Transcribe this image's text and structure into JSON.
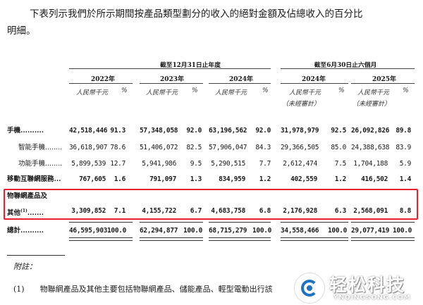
{
  "intro": {
    "line1": "下表列示我們於所示期間按產品類型劃分的收入的絕對金額及佔總收入的百分比",
    "line2": "明細。"
  },
  "table": {
    "group_fy": "截至12月31日止年度",
    "group_hy": "截至6月30日止六個月",
    "years": [
      "2022年",
      "2023年",
      "2024年",
      "2024年",
      "2025年"
    ],
    "unit": "人民幣千元",
    "pct": "%",
    "unaudited": "（未經審計）",
    "rows": [
      {
        "label": "手機",
        "leader": "..........",
        "vals": [
          "42,518,446",
          "91.3",
          "57,348,058",
          "92.0",
          "63,196,562",
          "92.0",
          "31,978,979",
          "92.5",
          "26,092,826",
          "89.8"
        ]
      },
      {
        "label": "智能手機",
        "leader": "........",
        "sub": true,
        "vals": [
          "36,618,907",
          "78.6",
          "51,406,072",
          "82.5",
          "57,906,047",
          "84.3",
          "29,366,505",
          "85.0",
          "24,388,638",
          "83.9"
        ]
      },
      {
        "label": "功能手機",
        "leader": "........",
        "sub": true,
        "vals": [
          "5,899,539",
          "12.7",
          "5,941,986",
          "9.5",
          "5,290,515",
          "7.7",
          "2,612,474",
          "7.5",
          "1,704,188",
          "5.9"
        ]
      },
      {
        "label": "移動互聯網服務",
        "leader": "...",
        "vals": [
          "767,605",
          "1.6",
          "791,097",
          "1.3",
          "834,959",
          "1.2",
          "402,559",
          "1.2",
          "416,502",
          "1.4"
        ]
      },
      {
        "label": "其他",
        "leader": ".......",
        "label_prefix": "物聯網產品及",
        "sup": "(1)",
        "vals": [
          "3,309,852",
          "7.1",
          "4,155,722",
          "6.7",
          "4,683,758",
          "6.8",
          "2,176,928",
          "6.3",
          "2,568,091",
          "8.8"
        ]
      },
      {
        "label": "總計",
        "leader": "..........",
        "vals": [
          "46,595,903",
          "100.0",
          "62,294,877",
          "100.0",
          "68,715,279",
          "100.0",
          "34,558,466",
          "100.0",
          "29,077,419",
          "100.0"
        ]
      }
    ]
  },
  "notes": {
    "heading": "附註：",
    "items": [
      {
        "num": "(1)",
        "text": "物聯網產品及其他主要包括物聯網產品、儲能產品、輕型電動出行該"
      }
    ]
  },
  "watermark": {
    "name": "轻松科技",
    "url": "YNQINGSONG.COM"
  },
  "colors": {
    "highlight": "#e8212e",
    "watermark_blue": "#1f72c4"
  }
}
